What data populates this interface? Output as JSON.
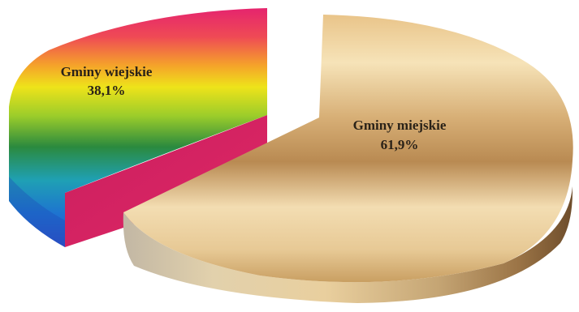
{
  "chart_data": {
    "type": "pie",
    "style": "3d-exploded",
    "title": "",
    "slices": [
      {
        "name": "Gminy wiejskie",
        "value": 38.1,
        "label_value": "38,1%",
        "fill": "rainbow-gradient"
      },
      {
        "name": "Gminy miejskie",
        "value": 61.9,
        "label_value": "61,9%",
        "fill": "gold-gradient"
      }
    ],
    "legend": "none"
  },
  "colors": {
    "rainbow_stops": [
      "#e8286a",
      "#f26a3a",
      "#f5b91e",
      "#e8e51c",
      "#2b8c3c",
      "#1e6fc8",
      "#2c56c9"
    ],
    "rural_side": "#d6245e",
    "gold_light": "#f4ddb0",
    "gold_mid": "#d2a86a",
    "gold_dark": "#7a5832"
  }
}
